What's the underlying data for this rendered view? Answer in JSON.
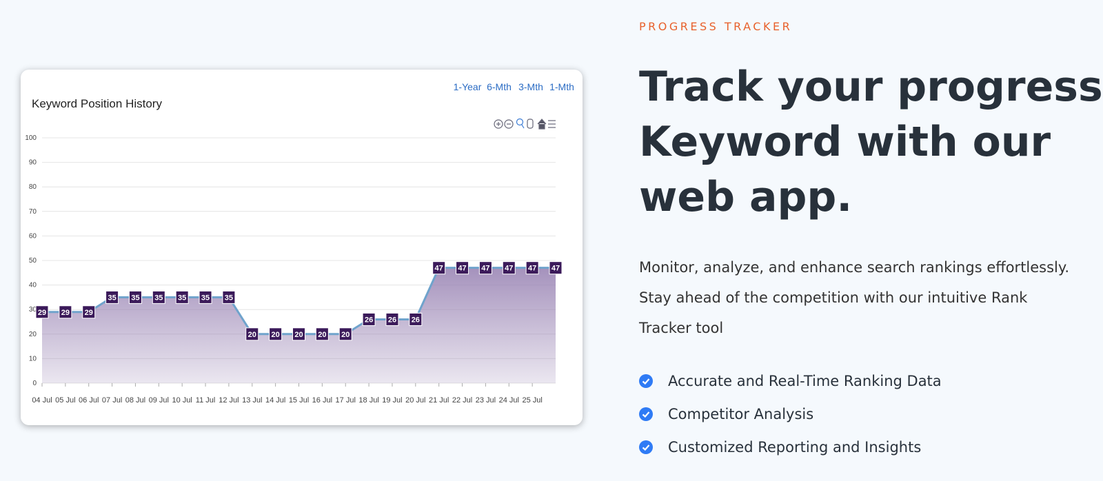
{
  "eyebrow": "PROGRESS TRACKER",
  "heading": {
    "lines": [
      "Track your progress",
      "Keyword with our",
      "web app."
    ]
  },
  "description": "Monitor, analyze, and enhance search rankings effortlessly. Stay ahead of the competition with our intuitive Rank Tracker tool",
  "features": [
    "Accurate and Real-Time Ranking Data",
    "Competitor Analysis",
    "Customized Reporting and Insights"
  ],
  "range_buttons": [
    "1-Year",
    "6-Mth",
    "3-Mth",
    "1-Mth"
  ],
  "chart_data": {
    "type": "area",
    "title": "Keyword Position History",
    "categories": [
      "04 Jul",
      "05 Jul",
      "06 Jul",
      "07 Jul",
      "08 Jul",
      "09 Jul",
      "10 Jul",
      "11 Jul",
      "12 Jul",
      "13 Jul",
      "14 Jul",
      "15 Jul",
      "16 Jul",
      "17 Jul",
      "18 Jul",
      "19 Jul",
      "20 Jul",
      "21 Jul",
      "22 Jul",
      "23 Jul",
      "24 Jul",
      "25 Jul",
      null
    ],
    "values": [
      29,
      29,
      29,
      35,
      35,
      35,
      35,
      35,
      35,
      20,
      20,
      20,
      20,
      20,
      26,
      26,
      26,
      47,
      47,
      47,
      47,
      47,
      47
    ],
    "color": "#6fa3cc",
    "fill_color": "#9b86b5",
    "marker_color": "#3b1a5a",
    "ylim": [
      0,
      100
    ],
    "yticks": [
      0,
      10,
      20,
      30,
      40,
      50,
      60,
      70,
      80,
      90,
      100
    ],
    "grid": true
  }
}
